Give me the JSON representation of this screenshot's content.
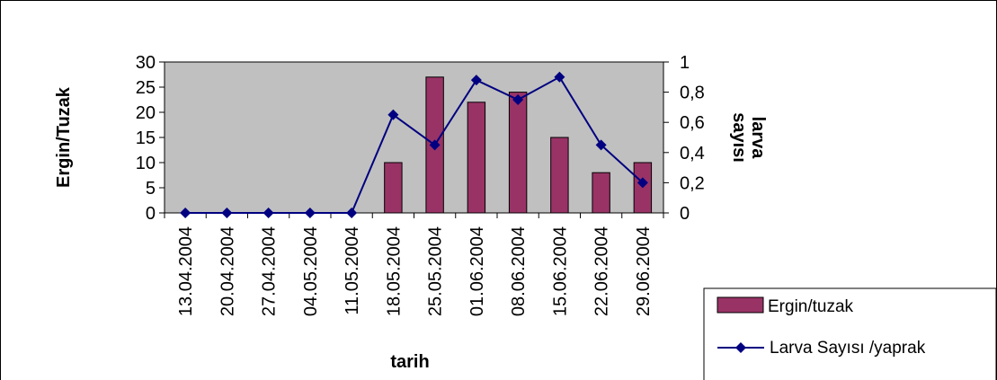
{
  "chart_data": {
    "type": "bar",
    "title": "",
    "xlabel": "tarih",
    "ylabel": "Ergin/Tuzak",
    "y2label": [
      "larva",
      "sayısı"
    ],
    "ylim": [
      0,
      30
    ],
    "y_ticks": [
      0,
      5,
      10,
      15,
      20,
      25,
      30
    ],
    "y2lim": [
      0,
      1
    ],
    "y2_ticks": [
      "0",
      "0,2",
      "0,4",
      "0,6",
      "0,8",
      "1"
    ],
    "categories": [
      "13.04.2004",
      "20.04.2004",
      "27.04.2004",
      "04.05.2004",
      "11.05.2004",
      "18.05.2004",
      "25.05.2004",
      "01.06.2004",
      "08.06.2004",
      "15.06.2004",
      "22.06.2004",
      "29.06.2004"
    ],
    "series": [
      {
        "name": "Ergin/tuzak",
        "type": "bar",
        "axis": "left",
        "color": "#993366",
        "values": [
          0,
          0,
          0,
          0,
          0,
          10,
          27,
          22,
          24,
          15,
          8,
          10
        ]
      },
      {
        "name": "Larva Sayısı /yaprak",
        "type": "line",
        "axis": "right",
        "color": "#000080",
        "values": [
          0,
          0,
          0,
          0,
          0,
          0.65,
          0.45,
          0.88,
          0.75,
          0.9,
          0.45,
          0.2
        ]
      }
    ],
    "plot_background": "#c0c0c0",
    "grid": false,
    "legend": "bottom-right"
  }
}
